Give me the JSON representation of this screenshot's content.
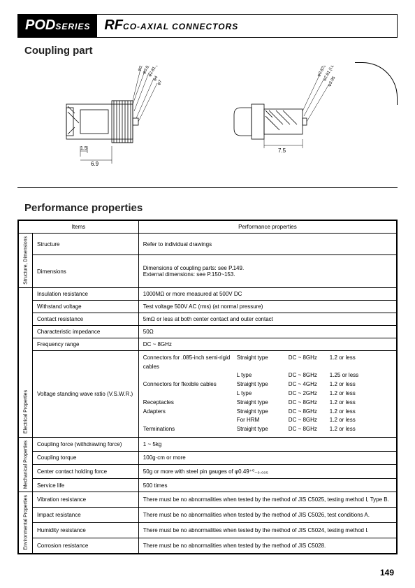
{
  "header": {
    "series_big": "POD",
    "series_small": "SERIES",
    "title_big": "RF",
    "title_small": "CO-AXIAL CONNECTORS"
  },
  "section1": "Coupling part",
  "diagrams": {
    "left": {
      "dims": {
        "d1": "φ0.35±0.065",
        "d2": "φ0.87±0.02 (O.D.)",
        "d3": "φ2.81 (I.D.)",
        "d4": "φ4",
        "d5": "φ7",
        "w1": "1.5",
        "w2": "6.9"
      }
    },
    "right": {
      "dims": {
        "d1": "φ0.87±0.02 (O.D.)",
        "d2": "φ2.81 (I.D.)",
        "d3": "φ3.95",
        "w1": "7.5"
      }
    }
  },
  "section2": "Performance properties",
  "table": {
    "head_items": "Items",
    "head_props": "Performance properties",
    "cat1": "Structure, Dimensions",
    "cat2": "Electrical Properties",
    "cat3": "Mechanical Properties",
    "cat4": "Environmental Properties",
    "rows": {
      "structure": {
        "label": "Structure",
        "value": "Refer to individual drawings"
      },
      "dimensions": {
        "label": "Dimensions",
        "value": "Dimensions of coupling parts: see P.149.\nExternal dimensions: see P.150~153."
      },
      "insulation": {
        "label": "Insulation resistance",
        "value": "1000MΩ or more measured at 500V DC"
      },
      "withstand": {
        "label": "Withstand voltage",
        "value": "Test voltage 500V AC (rms) (at normal pressure)"
      },
      "contact": {
        "label": "Contact resistance",
        "value": "5mΩ or less at both center contact and outer contact"
      },
      "impedance": {
        "label": "Characteristic impedance",
        "value": "50Ω"
      },
      "freq": {
        "label": "Frequency range",
        "value": "DC ~ 8GHz"
      },
      "vswr": {
        "label": "Voltage standing wave ratio (V.S.W.R.)",
        "lines": [
          {
            "c1": "Connectors for .085-inch semi-rigid cables",
            "c2": "Straight type",
            "c3": "DC ~ 8GHz",
            "c4": "1.2 or less"
          },
          {
            "c1": "",
            "c2": "L type",
            "c3": "DC ~ 8GHz",
            "c4": "1.25 or less"
          },
          {
            "c1": "Connectors for flexible cables",
            "c2": "Straight type",
            "c3": "DC ~ 4GHz",
            "c4": "1.2 or less"
          },
          {
            "c1": "",
            "c2": "L type",
            "c3": "DC ~ 2GHz",
            "c4": "1.2 or less"
          },
          {
            "c1": "Receptacles",
            "c2": "Straight type",
            "c3": "DC ~ 8GHz",
            "c4": "1.2 or less"
          },
          {
            "c1": "Adapters",
            "c2": "Straight type",
            "c3": "DC ~ 8GHz",
            "c4": "1.2 or less"
          },
          {
            "c1": "",
            "c2": "For HRM",
            "c3": "DC ~ 8GHz",
            "c4": "1.2 or less"
          },
          {
            "c1": "Terminations",
            "c2": "Straight type",
            "c3": "DC ~ 8GHz",
            "c4": "1.2 or less"
          }
        ]
      },
      "coupling_force": {
        "label": "Coupling force (withdrawing force)",
        "value": "1 ~ 5kg"
      },
      "coupling_torque": {
        "label": "Coupling torque",
        "value": "100g·cm or more"
      },
      "center_hold": {
        "label": "Center contact holding force",
        "value": "50g or more with steel pin gauges of φ0.49⁺⁰₋₀.₀₀₅"
      },
      "service_life": {
        "label": "Service life",
        "value": "500 times"
      },
      "vibration": {
        "label": "Vibration resistance",
        "value": "There must be no abnormalities when tested by the method of JIS C5025, testing method I, Type B."
      },
      "impact": {
        "label": "Impact resistance",
        "value": "There must be no abnormalities when tested by the method of JIS C5026, test conditions A."
      },
      "humidity": {
        "label": "Humidity resistance",
        "value": "There must be no abnormalities when tested by the method of JIS C5024, testing method I."
      },
      "corrosion": {
        "label": "Corrosion resistance",
        "value": "There must be no abnormalities when tested by the method of JIS C5028."
      }
    }
  },
  "page_number": "149",
  "colors": {
    "bg": "#ffffff",
    "ink": "#000000",
    "hatch": "#555555"
  }
}
